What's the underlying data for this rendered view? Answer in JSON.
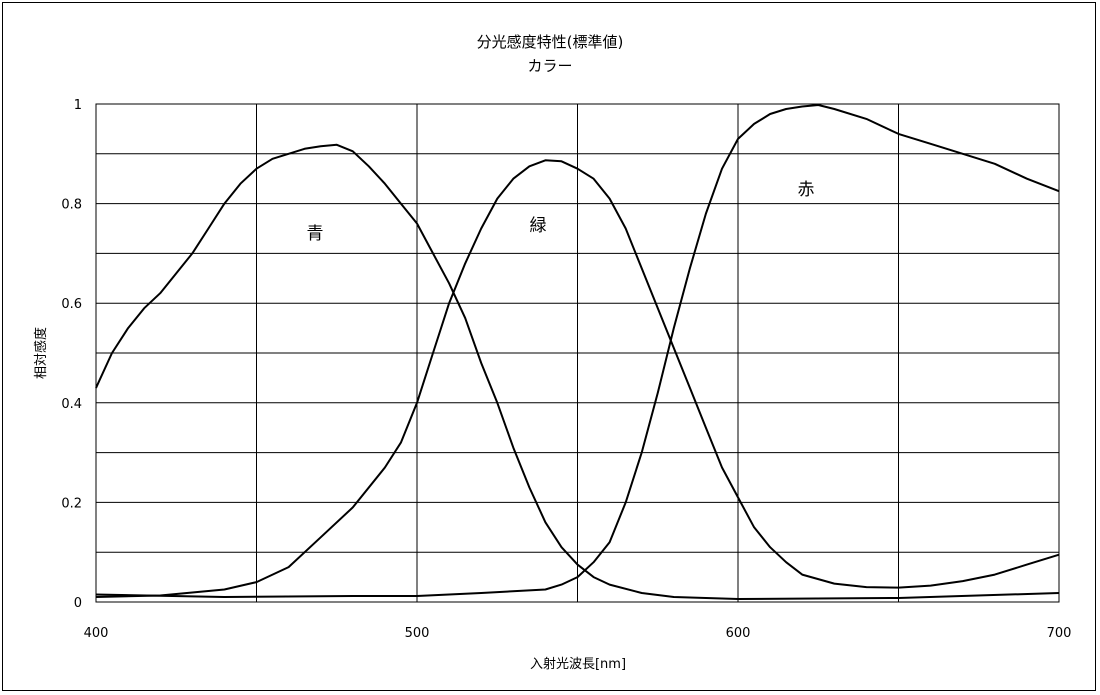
{
  "chart_data": {
    "type": "line",
    "title": "分光感度特性(標準値)",
    "subtitle": "カラー",
    "xlabel": "入射光波長[nm]",
    "ylabel": "相対感度",
    "xlim": [
      400,
      700
    ],
    "ylim": [
      0,
      1
    ],
    "x_ticks": [
      "400",
      "500",
      "600",
      "700"
    ],
    "y_ticks": [
      "0",
      "0.2",
      "0.4",
      "0.6",
      "0.8",
      "1"
    ],
    "grid": true,
    "series": [
      {
        "name": "青",
        "points": [
          [
            400,
            0.43
          ],
          [
            405,
            0.5
          ],
          [
            410,
            0.55
          ],
          [
            415,
            0.59
          ],
          [
            420,
            0.62
          ],
          [
            425,
            0.66
          ],
          [
            430,
            0.7
          ],
          [
            435,
            0.75
          ],
          [
            440,
            0.8
          ],
          [
            445,
            0.84
          ],
          [
            450,
            0.87
          ],
          [
            455,
            0.89
          ],
          [
            460,
            0.9
          ],
          [
            465,
            0.91
          ],
          [
            470,
            0.915
          ],
          [
            475,
            0.918
          ],
          [
            480,
            0.905
          ],
          [
            485,
            0.875
          ],
          [
            490,
            0.84
          ],
          [
            495,
            0.8
          ],
          [
            500,
            0.76
          ],
          [
            505,
            0.7
          ],
          [
            510,
            0.64
          ],
          [
            515,
            0.57
          ],
          [
            520,
            0.48
          ],
          [
            525,
            0.4
          ],
          [
            530,
            0.31
          ],
          [
            535,
            0.23
          ],
          [
            540,
            0.16
          ],
          [
            545,
            0.11
          ],
          [
            550,
            0.075
          ],
          [
            555,
            0.05
          ],
          [
            560,
            0.035
          ],
          [
            570,
            0.018
          ],
          [
            580,
            0.01
          ],
          [
            600,
            0.006
          ],
          [
            650,
            0.008
          ],
          [
            700,
            0.018
          ]
        ]
      },
      {
        "name": "緑",
        "points": [
          [
            400,
            0.01
          ],
          [
            420,
            0.013
          ],
          [
            440,
            0.025
          ],
          [
            450,
            0.04
          ],
          [
            460,
            0.07
          ],
          [
            470,
            0.13
          ],
          [
            480,
            0.19
          ],
          [
            490,
            0.27
          ],
          [
            495,
            0.32
          ],
          [
            500,
            0.4
          ],
          [
            505,
            0.5
          ],
          [
            510,
            0.6
          ],
          [
            515,
            0.68
          ],
          [
            520,
            0.75
          ],
          [
            525,
            0.81
          ],
          [
            530,
            0.85
          ],
          [
            535,
            0.875
          ],
          [
            540,
            0.887
          ],
          [
            545,
            0.885
          ],
          [
            550,
            0.87
          ],
          [
            555,
            0.85
          ],
          [
            560,
            0.81
          ],
          [
            565,
            0.75
          ],
          [
            570,
            0.67
          ],
          [
            575,
            0.59
          ],
          [
            580,
            0.51
          ],
          [
            585,
            0.43
          ],
          [
            590,
            0.35
          ],
          [
            595,
            0.27
          ],
          [
            600,
            0.21
          ],
          [
            605,
            0.15
          ],
          [
            610,
            0.11
          ],
          [
            615,
            0.08
          ],
          [
            620,
            0.055
          ],
          [
            630,
            0.037
          ],
          [
            640,
            0.03
          ],
          [
            650,
            0.029
          ],
          [
            660,
            0.033
          ],
          [
            670,
            0.042
          ],
          [
            680,
            0.055
          ],
          [
            690,
            0.075
          ],
          [
            700,
            0.095
          ]
        ]
      },
      {
        "name": "赤",
        "points": [
          [
            400,
            0.015
          ],
          [
            440,
            0.01
          ],
          [
            480,
            0.012
          ],
          [
            500,
            0.012
          ],
          [
            520,
            0.018
          ],
          [
            540,
            0.025
          ],
          [
            545,
            0.035
          ],
          [
            550,
            0.05
          ],
          [
            555,
            0.08
          ],
          [
            560,
            0.12
          ],
          [
            565,
            0.2
          ],
          [
            570,
            0.3
          ],
          [
            575,
            0.42
          ],
          [
            580,
            0.55
          ],
          [
            585,
            0.67
          ],
          [
            590,
            0.78
          ],
          [
            595,
            0.87
          ],
          [
            600,
            0.93
          ],
          [
            605,
            0.96
          ],
          [
            610,
            0.98
          ],
          [
            615,
            0.99
          ],
          [
            620,
            0.995
          ],
          [
            625,
            0.998
          ],
          [
            630,
            0.99
          ],
          [
            640,
            0.97
          ],
          [
            650,
            0.94
          ],
          [
            660,
            0.92
          ],
          [
            670,
            0.9
          ],
          [
            680,
            0.88
          ],
          [
            690,
            0.85
          ],
          [
            700,
            0.825
          ]
        ]
      }
    ]
  }
}
